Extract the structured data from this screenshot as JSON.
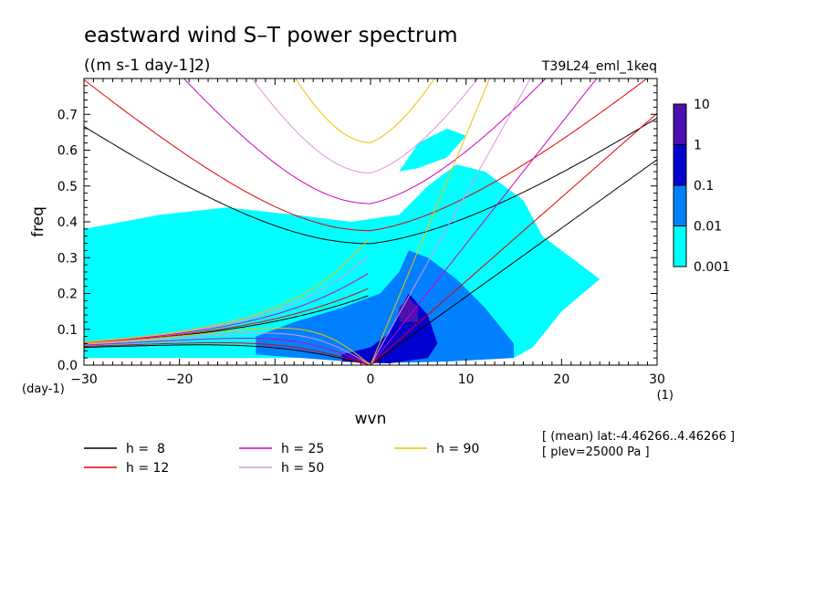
{
  "chart_data": {
    "type": "heatmap",
    "title": "eastward wind S–T power spectrum",
    "subtitle": "((m s-1 day-1]2)",
    "run_label": "T39L24_eml_1keq",
    "xlabel": "wvn",
    "ylabel": "freq",
    "x_unit": "(1)",
    "y_unit": "(day-1)",
    "xlim": [
      -30,
      30
    ],
    "ylim": [
      0,
      0.8
    ],
    "x_ticks": [
      "−30",
      "−20",
      "−10",
      "0",
      "10",
      "20",
      "30"
    ],
    "x_tick_values": [
      -30,
      -20,
      -10,
      0,
      10,
      20,
      30
    ],
    "y_ticks": [
      "0.0",
      "0.1",
      "0.2",
      "0.3",
      "0.4",
      "0.5",
      "0.6",
      "0.7"
    ],
    "y_tick_values": [
      0,
      0.1,
      0.2,
      0.3,
      0.4,
      0.5,
      0.6,
      0.7
    ],
    "colorbar": {
      "labels": [
        "10",
        "1",
        "0.1",
        "0.01",
        "0.001"
      ],
      "levels": [
        0.001,
        0.01,
        0.1,
        1,
        10
      ],
      "colors": [
        "#00ffff",
        "#0080ff",
        "#0000d0",
        "#4a10b0"
      ]
    },
    "power_regions": [
      {
        "level": 0.001,
        "color": "#00ffff",
        "polygon": [
          [
            -30,
            0.02
          ],
          [
            -30,
            0.38
          ],
          [
            -22,
            0.42
          ],
          [
            -15,
            0.44
          ],
          [
            -8,
            0.42
          ],
          [
            -2,
            0.4
          ],
          [
            3,
            0.42
          ],
          [
            6,
            0.5
          ],
          [
            9,
            0.56
          ],
          [
            12,
            0.54
          ],
          [
            16,
            0.46
          ],
          [
            18,
            0.36
          ],
          [
            21,
            0.3
          ],
          [
            24,
            0.24
          ],
          [
            20,
            0.15
          ],
          [
            17,
            0.05
          ],
          [
            15,
            0.02
          ]
        ]
      },
      {
        "level": 0.001,
        "color": "#00ffff",
        "polygon": [
          [
            3,
            0.54
          ],
          [
            5,
            0.62
          ],
          [
            8,
            0.66
          ],
          [
            10,
            0.64
          ],
          [
            8,
            0.58
          ],
          [
            5,
            0.55
          ]
        ]
      },
      {
        "level": 0.01,
        "color": "#0080ff",
        "polygon": [
          [
            -12,
            0.03
          ],
          [
            -12,
            0.08
          ],
          [
            -8,
            0.12
          ],
          [
            -3,
            0.16
          ],
          [
            1,
            0.2
          ],
          [
            3,
            0.26
          ],
          [
            4,
            0.32
          ],
          [
            6,
            0.3
          ],
          [
            9,
            0.24
          ],
          [
            12,
            0.16
          ],
          [
            15,
            0.06
          ],
          [
            15,
            0.02
          ],
          [
            8,
            0.01
          ],
          [
            0,
            0.005
          ]
        ]
      },
      {
        "level": 0.1,
        "color": "#0000d0",
        "polygon": [
          [
            -3,
            0.01
          ],
          [
            -3,
            0.03
          ],
          [
            0,
            0.05
          ],
          [
            2,
            0.09
          ],
          [
            3,
            0.15
          ],
          [
            4,
            0.2
          ],
          [
            6,
            0.14
          ],
          [
            7,
            0.06
          ],
          [
            6,
            0.02
          ],
          [
            2,
            0.005
          ]
        ]
      },
      {
        "level": 1,
        "color": "#4a10b0",
        "polygon": [
          [
            3,
            0.12
          ],
          [
            3,
            0.16
          ],
          [
            4,
            0.19
          ],
          [
            5,
            0.16
          ],
          [
            5,
            0.12
          ]
        ]
      }
    ],
    "series": [
      {
        "name": "h =  8",
        "color": "#000000"
      },
      {
        "name": "h = 12",
        "color": "#e00000"
      },
      {
        "name": "h = 25",
        "color": "#d000c0"
      },
      {
        "name": "h = 50",
        "color": "#e090e0"
      },
      {
        "name": "h = 90",
        "color": "#f0c000"
      }
    ],
    "legend_position": "bottom",
    "annotations": [
      "[ (mean) lat:-4.46266..4.46266 ]",
      "[ plev=25000 Pa ]"
    ]
  }
}
